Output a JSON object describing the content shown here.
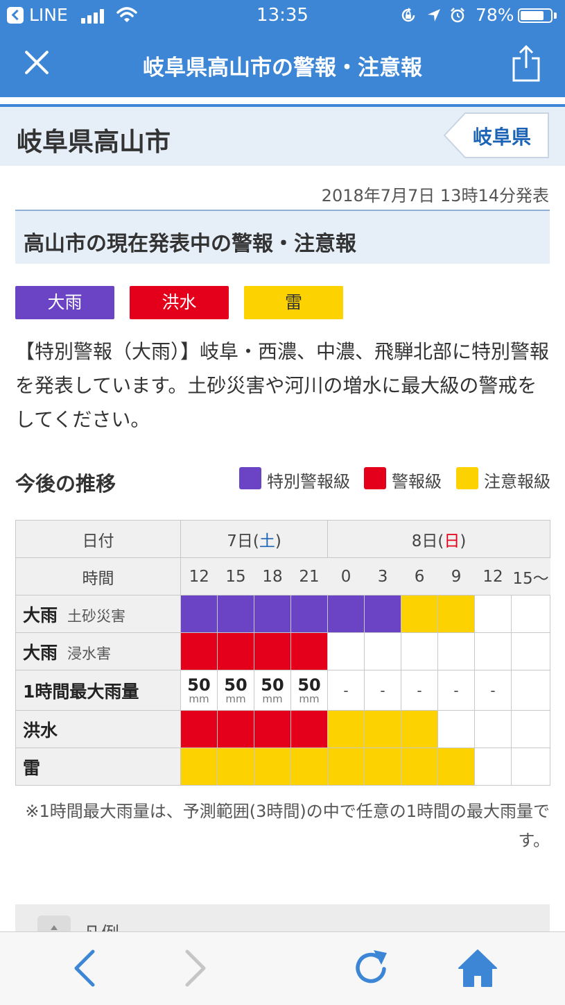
{
  "status_bar": {
    "back_app": "LINE",
    "time": "13:35",
    "battery": "78%",
    "battery_level": 0.78,
    "signal_bars": 4
  },
  "header": {
    "title": "岐阜県高山市の警報・注意報"
  },
  "location": {
    "title": "岐阜県高山市",
    "prefecture_button": "岐阜県"
  },
  "issued": "2018年7月7日 13時14分発表",
  "section_title": "高山市の現在発表中の警報・注意報",
  "badges": [
    {
      "label": "大雨",
      "color": "#6a44c4"
    },
    {
      "label": "洪水",
      "color": "#e4001b"
    },
    {
      "label": "雷",
      "color": "#fcd200"
    }
  ],
  "message": "【特別警報（大雨）】岐阜・西濃、中濃、飛騨北部に特別警報を発表しています。土砂災害や河川の増水に最大級の警戒をしてください。",
  "trend": {
    "title": "今後の推移",
    "legend": [
      {
        "label": "特別警報級",
        "color": "#6a44c4"
      },
      {
        "label": "警報級",
        "color": "#e4001b"
      },
      {
        "label": "注意報級",
        "color": "#fcd200"
      }
    ]
  },
  "table": {
    "date_header": "日付",
    "day1": {
      "prefix": "7日(",
      "weekday": "土",
      "suffix": ")"
    },
    "day2": {
      "prefix": "8日(",
      "weekday": "日",
      "suffix": ")"
    },
    "time_header": "時間",
    "times": [
      "12",
      "15",
      "18",
      "21",
      "0",
      "3",
      "6",
      "9",
      "12",
      "15〜"
    ],
    "rows": [
      {
        "label": "大雨",
        "sub": "土砂災害",
        "levels": [
          "special",
          "special",
          "special",
          "special",
          "special",
          "special",
          "advisory",
          "advisory",
          "none",
          "none"
        ]
      },
      {
        "label": "大雨",
        "sub": "浸水害",
        "levels": [
          "warning",
          "warning",
          "warning",
          "warning",
          "none",
          "none",
          "none",
          "none",
          "none",
          "none"
        ]
      },
      {
        "label": "洪水",
        "sub": "",
        "levels": [
          "warning",
          "warning",
          "warning",
          "warning",
          "advisory",
          "advisory",
          "advisory",
          "none",
          "none",
          "none"
        ]
      },
      {
        "label": "雷",
        "sub": "",
        "levels": [
          "advisory",
          "advisory",
          "advisory",
          "advisory",
          "advisory",
          "advisory",
          "advisory",
          "advisory",
          "none",
          "none"
        ]
      }
    ],
    "rain": {
      "label": "1時間最大雨量",
      "unit": "mm",
      "values": [
        "50",
        "50",
        "50",
        "50",
        "-",
        "-",
        "-",
        "-",
        "-",
        ""
      ]
    }
  },
  "note": "※1時間最大雨量は、予測範囲(3時間)の中で任意の1時間の最大雨量です。",
  "legend_panel": {
    "label": "凡例"
  },
  "colors": {
    "special": "#6a44c4",
    "warning": "#e4001b",
    "advisory": "#fcd200",
    "none": "#ffffff",
    "accent": "#3d86d6"
  }
}
